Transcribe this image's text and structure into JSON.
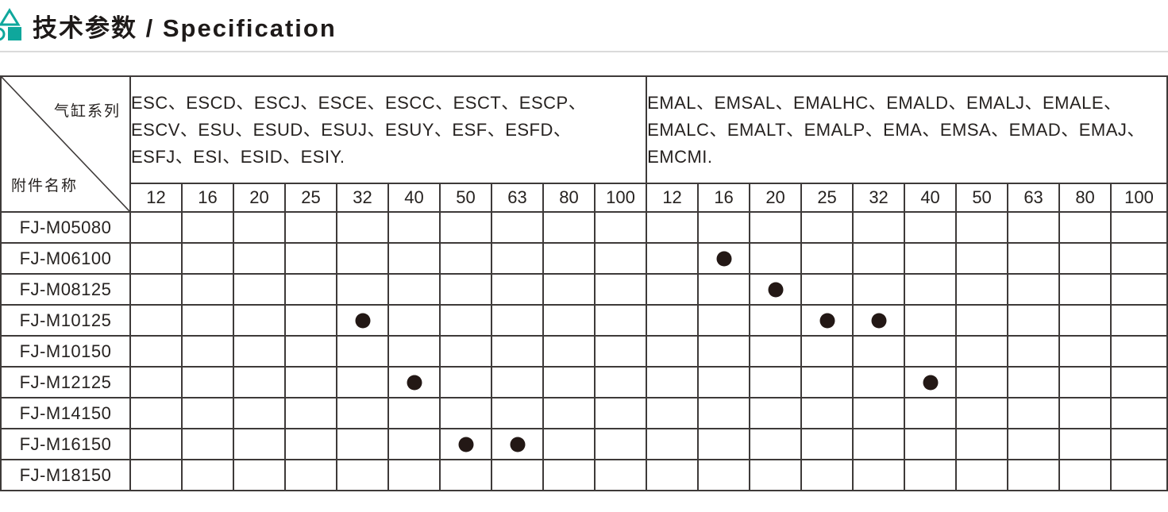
{
  "header": {
    "title": "技术参数 / Specification",
    "accent_color": "#0FA79C"
  },
  "table": {
    "corner": {
      "top_right": "气缸系列",
      "bottom_left": "附件名称"
    },
    "groups": [
      {
        "series": "ESC、ESCD、ESCJ、ESCE、ESCC、ESCT、ESCP、\nESCV、ESU、ESUD、ESUJ、ESUY、ESF、ESFD、\nESFJ、ESI、ESID、ESIY.",
        "sizes": [
          "12",
          "16",
          "20",
          "25",
          "32",
          "40",
          "50",
          "63",
          "80",
          "100"
        ]
      },
      {
        "series": "EMAL、EMSAL、EMALHC、EMALD、EMALJ、EMALE、\nEMALC、EMALT、EMALP、EMA、EMSA、EMAD、EMAJ、\nEMCMI.",
        "sizes": [
          "12",
          "16",
          "20",
          "25",
          "32",
          "40",
          "50",
          "63",
          "80",
          "100"
        ]
      }
    ],
    "rows": [
      {
        "label": "FJ-M05080",
        "marks": [
          [
            0,
            0,
            0,
            0,
            0,
            0,
            0,
            0,
            0,
            0
          ],
          [
            0,
            0,
            0,
            0,
            0,
            0,
            0,
            0,
            0,
            0
          ]
        ]
      },
      {
        "label": "FJ-M06100",
        "marks": [
          [
            0,
            0,
            0,
            0,
            0,
            0,
            0,
            0,
            0,
            0
          ],
          [
            0,
            1,
            0,
            0,
            0,
            0,
            0,
            0,
            0,
            0
          ]
        ]
      },
      {
        "label": "FJ-M08125",
        "marks": [
          [
            0,
            0,
            0,
            0,
            0,
            0,
            0,
            0,
            0,
            0
          ],
          [
            0,
            0,
            1,
            0,
            0,
            0,
            0,
            0,
            0,
            0
          ]
        ]
      },
      {
        "label": "FJ-M10125",
        "marks": [
          [
            0,
            0,
            0,
            0,
            1,
            0,
            0,
            0,
            0,
            0
          ],
          [
            0,
            0,
            0,
            1,
            1,
            0,
            0,
            0,
            0,
            0
          ]
        ]
      },
      {
        "label": "FJ-M10150",
        "marks": [
          [
            0,
            0,
            0,
            0,
            0,
            0,
            0,
            0,
            0,
            0
          ],
          [
            0,
            0,
            0,
            0,
            0,
            0,
            0,
            0,
            0,
            0
          ]
        ]
      },
      {
        "label": "FJ-M12125",
        "marks": [
          [
            0,
            0,
            0,
            0,
            0,
            1,
            0,
            0,
            0,
            0
          ],
          [
            0,
            0,
            0,
            0,
            0,
            1,
            0,
            0,
            0,
            0
          ]
        ]
      },
      {
        "label": "FJ-M14150",
        "marks": [
          [
            0,
            0,
            0,
            0,
            0,
            0,
            0,
            0,
            0,
            0
          ],
          [
            0,
            0,
            0,
            0,
            0,
            0,
            0,
            0,
            0,
            0
          ]
        ]
      },
      {
        "label": "FJ-M16150",
        "marks": [
          [
            0,
            0,
            0,
            0,
            0,
            0,
            1,
            1,
            0,
            0
          ],
          [
            0,
            0,
            0,
            0,
            0,
            0,
            0,
            0,
            0,
            0
          ]
        ]
      },
      {
        "label": "FJ-M18150",
        "marks": [
          [
            0,
            0,
            0,
            0,
            0,
            0,
            0,
            0,
            0,
            0
          ],
          [
            0,
            0,
            0,
            0,
            0,
            0,
            0,
            0,
            0,
            0
          ]
        ]
      }
    ]
  },
  "colors": {
    "accent": "#0FA79C",
    "border": "#3E3A39",
    "text": "#262220",
    "dot": "#231815",
    "divider": "#DADADA"
  }
}
